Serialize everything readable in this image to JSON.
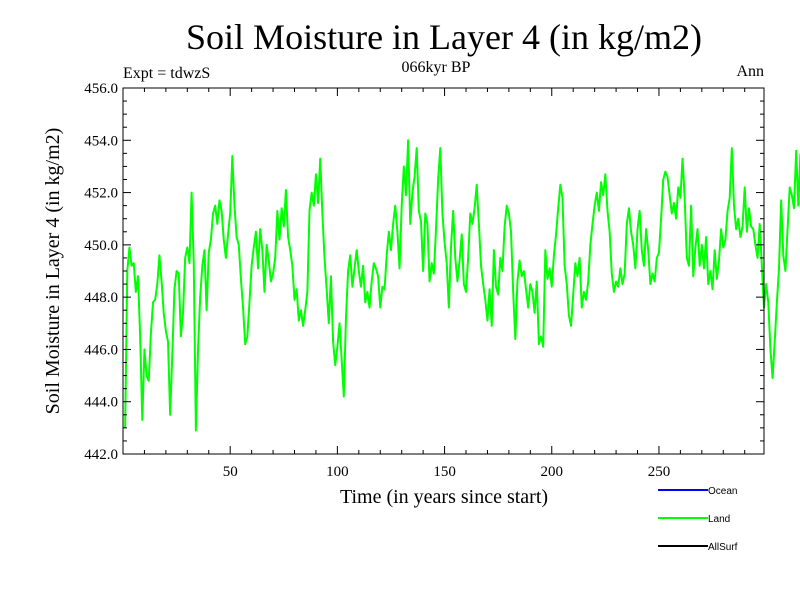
{
  "chart_data": {
    "type": "line",
    "title": "Soil Moisture in Layer 4 (in kg/m2)",
    "subtitle": "066kyr BP",
    "left_label": "Expt = tdwzS",
    "right_label": "Ann",
    "xlabel": "Time (in years since start)",
    "ylabel": "Soil Moisture in Layer 4 (in kg/m2)",
    "xlim": [
      0,
      299
    ],
    "ylim": [
      442.0,
      456.0
    ],
    "x_ticks": [
      50,
      100,
      150,
      200,
      250
    ],
    "y_ticks": [
      "442.0",
      "444.0",
      "446.0",
      "448.0",
      "450.0",
      "452.0",
      "454.0",
      "456.0"
    ],
    "legend": [
      {
        "name": "Ocean",
        "color": "#0000ff"
      },
      {
        "name": "Land",
        "color": "#00ff00"
      },
      {
        "name": "AllSurf",
        "color": "#000000"
      }
    ],
    "series": [
      {
        "name": "Land",
        "color": "#00ff00",
        "x_start": 1,
        "x_step": 1,
        "values": [
          443.0,
          449.0,
          449.9,
          449.2,
          449.3,
          448.2,
          448.8,
          446.5,
          443.3,
          446.0,
          445.0,
          444.8,
          446.6,
          447.8,
          447.9,
          448.5,
          449.6,
          448.6,
          447.4,
          446.7,
          446.3,
          443.5,
          445.8,
          448.3,
          449.0,
          448.9,
          446.5,
          447.4,
          449.5,
          449.9,
          449.3,
          452.0,
          449.3,
          442.9,
          446.0,
          448.0,
          449.2,
          449.8,
          447.5,
          449.7,
          450.2,
          451.2,
          451.5,
          450.8,
          451.7,
          451.3,
          450.2,
          449.5,
          450.4,
          451.2,
          453.4,
          451.5,
          450.3,
          450.0,
          448.7,
          447.6,
          446.2,
          446.5,
          447.8,
          449.2,
          449.9,
          450.5,
          449.1,
          450.6,
          449.8,
          448.2,
          450.0,
          449.4,
          448.6,
          448.9,
          449.5,
          451.3,
          450.2,
          451.4,
          450.7,
          452.1,
          450.3,
          449.8,
          449.2,
          447.9,
          448.3,
          447.1,
          447.5,
          446.9,
          447.5,
          448.2,
          451.3,
          452.0,
          451.5,
          452.7,
          451.6,
          453.3,
          451.2,
          449.5,
          448.3,
          447.0,
          448.8,
          446.3,
          445.4,
          446.1,
          447.0,
          445.6,
          444.2,
          447.2,
          449.0,
          449.6,
          448.4,
          449.1,
          449.8,
          449.0,
          448.4,
          449.2,
          447.8,
          448.2,
          447.6,
          448.6,
          449.3,
          449.1,
          448.8,
          447.6,
          448.4,
          448.3,
          449.6,
          450.5,
          449.8,
          450.8,
          451.5,
          450.5,
          449.1,
          451.5,
          453.0,
          451.9,
          454.0,
          450.8,
          452.0,
          452.6,
          453.7,
          451.3,
          450.9,
          449.0,
          451.2,
          450.8,
          448.6,
          449.3,
          448.9,
          450.6,
          452.5,
          453.7,
          451.2,
          450.1,
          449.3,
          447.6,
          449.9,
          451.3,
          449.5,
          448.6,
          449.4,
          450.4,
          448.5,
          448.2,
          449.5,
          451.2,
          450.8,
          451.4,
          452.3,
          450.8,
          449.2,
          448.5,
          447.9,
          447.1,
          448.3,
          446.9,
          449.8,
          448.4,
          448.1,
          449.5,
          449.0,
          450.7,
          451.5,
          451.2,
          450.5,
          448.2,
          446.4,
          448.6,
          449.4,
          448.8,
          449.0,
          448.3,
          447.6,
          448.5,
          448.2,
          447.4,
          448.6,
          446.2,
          446.5,
          446.1,
          449.8,
          448.7,
          449.1,
          448.4,
          449.6,
          450.4,
          451.4,
          452.3,
          451.8,
          449.2,
          448.5,
          447.3,
          446.9,
          448.1,
          449.3,
          448.8,
          449.5,
          447.6,
          448.2,
          447.9,
          448.6,
          450.0,
          450.8,
          451.5,
          452.0,
          451.3,
          452.4,
          451.9,
          452.7,
          451.3,
          450.5,
          448.9,
          448.2,
          448.6,
          448.4,
          449.1,
          448.5,
          448.9,
          450.8,
          451.4,
          450.5,
          450.0,
          449.1,
          450.6,
          451.3,
          449.8,
          449.2,
          450.6,
          449.8,
          448.5,
          448.9,
          448.6,
          449.5,
          449.7,
          451.0,
          452.5,
          452.8,
          452.6,
          451.9,
          451.2,
          451.6,
          451.0,
          452.2,
          451.8,
          453.3,
          451.8,
          449.5,
          449.2,
          451.5,
          448.8,
          449.9,
          450.6,
          449.2,
          450.0,
          449.1,
          450.3,
          448.5,
          449.0,
          448.3,
          449.8,
          448.7,
          449.4,
          450.6,
          449.9,
          450.2,
          451.3,
          451.8,
          453.7,
          451.5,
          450.6,
          451.0,
          450.3,
          450.7,
          452.2,
          450.5,
          451.4,
          450.7,
          450.6,
          450.0,
          449.5,
          450.8,
          449.2,
          447.6,
          448.5,
          447.8,
          446.0,
          444.9,
          446.3,
          447.8,
          449.1,
          451.7,
          449.6,
          449.0,
          450.6,
          452.2,
          451.9,
          451.4,
          453.6,
          451.5,
          453.5
        ]
      }
    ]
  }
}
